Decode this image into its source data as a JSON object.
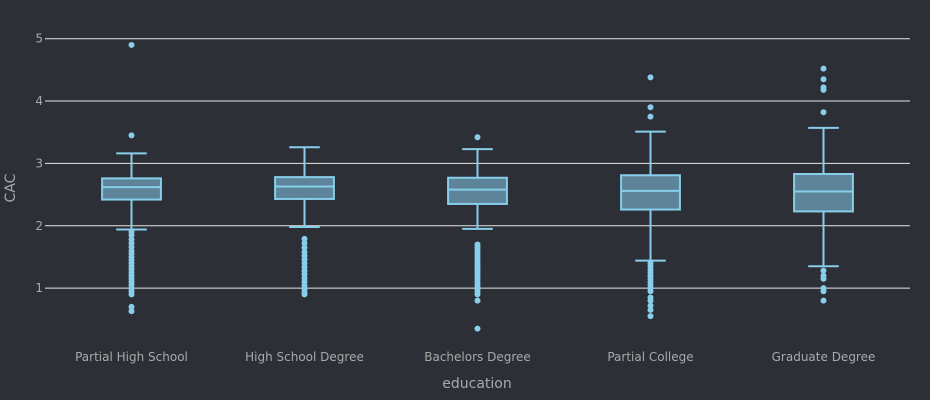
{
  "chart_data": {
    "type": "box",
    "title": "",
    "xlabel": "education",
    "ylabel": "CAC",
    "ylim": [
      0.2,
      5.3
    ],
    "y_ticks": [
      1,
      2,
      3,
      4,
      5
    ],
    "grid": true,
    "legend": "none",
    "colors": {
      "background": "#2c2f36",
      "grid": "#e6e6e6",
      "box_fill": "#5d8499",
      "box_stroke": "#87ceeb",
      "tick_text": "#a9a9a9"
    },
    "categories": [
      "Partial High School",
      "High School Degree",
      "Bachelors Degree",
      "Partial College",
      "Graduate Degree"
    ],
    "boxes": [
      {
        "category": "Partial High School",
        "lower_whisker": 1.94,
        "q1": 2.42,
        "median": 2.62,
        "q3": 2.76,
        "upper_whisker": 3.16,
        "outliers": [
          4.9,
          3.45,
          1.9,
          1.85,
          1.78,
          1.72,
          1.66,
          1.6,
          1.55,
          1.5,
          1.45,
          1.4,
          1.35,
          1.3,
          1.25,
          1.2,
          1.15,
          1.1,
          1.05,
          1.0,
          0.95,
          0.9,
          0.7,
          0.63
        ]
      },
      {
        "category": "High School Degree",
        "lower_whisker": 1.98,
        "q1": 2.43,
        "median": 2.63,
        "q3": 2.78,
        "upper_whisker": 3.26,
        "outliers": [
          1.79,
          1.72,
          1.65,
          1.58,
          1.52,
          1.46,
          1.4,
          1.34,
          1.28,
          1.22,
          1.16,
          1.1,
          1.04,
          0.98,
          0.93,
          0.9
        ]
      },
      {
        "category": "Bachelors Degree",
        "lower_whisker": 1.95,
        "q1": 2.35,
        "median": 2.58,
        "q3": 2.77,
        "upper_whisker": 3.23,
        "outliers": [
          3.42,
          1.7,
          1.66,
          1.62,
          1.58,
          1.54,
          1.5,
          1.46,
          1.42,
          1.38,
          1.34,
          1.3,
          1.26,
          1.22,
          1.18,
          1.14,
          1.1,
          1.06,
          1.02,
          0.98,
          0.94,
          0.9,
          0.8,
          0.35
        ]
      },
      {
        "category": "Partial College",
        "lower_whisker": 1.44,
        "q1": 2.26,
        "median": 2.56,
        "q3": 2.81,
        "upper_whisker": 3.51,
        "outliers": [
          4.38,
          3.9,
          3.75,
          1.4,
          1.35,
          1.3,
          1.25,
          1.2,
          1.15,
          1.1,
          1.05,
          1.0,
          0.95,
          0.85,
          0.8,
          0.72,
          0.65,
          0.55
        ]
      },
      {
        "category": "Graduate Degree",
        "lower_whisker": 1.35,
        "q1": 2.23,
        "median": 2.55,
        "q3": 2.83,
        "upper_whisker": 3.57,
        "outliers": [
          4.52,
          4.35,
          4.22,
          4.18,
          3.82,
          1.28,
          1.2,
          1.15,
          1.0,
          0.95,
          0.8
        ]
      }
    ]
  }
}
